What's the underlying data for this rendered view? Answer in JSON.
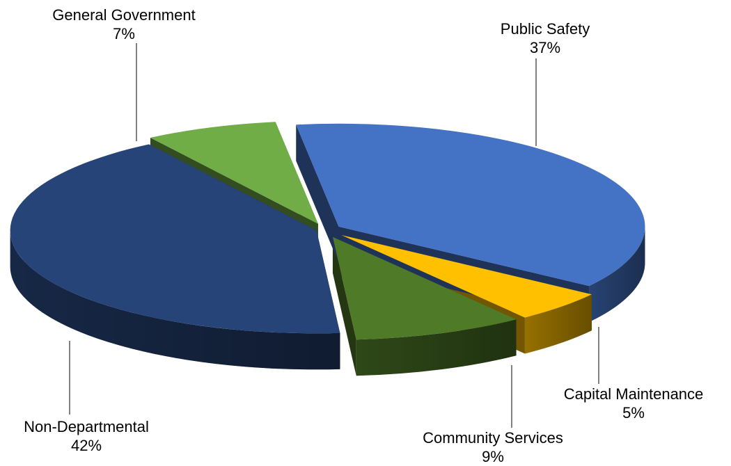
{
  "chart_data": {
    "type": "pie",
    "style": "3d-exploded",
    "legend": "none",
    "title": "",
    "slices": [
      {
        "label": "Public Safety",
        "percent_label": "37%",
        "value": 37,
        "color": "#4472c4"
      },
      {
        "label": "Capital Maintenance",
        "percent_label": "5%",
        "value": 5,
        "color": "#ffc000"
      },
      {
        "label": "Community Services",
        "percent_label": "9%",
        "value": 9,
        "color": "#4f7a28"
      },
      {
        "label": "Non-Departmental",
        "percent_label": "42%",
        "value": 42,
        "color": "#264478"
      },
      {
        "label": "General Government",
        "percent_label": "7%",
        "value": 7,
        "color": "#70ad47"
      }
    ]
  }
}
